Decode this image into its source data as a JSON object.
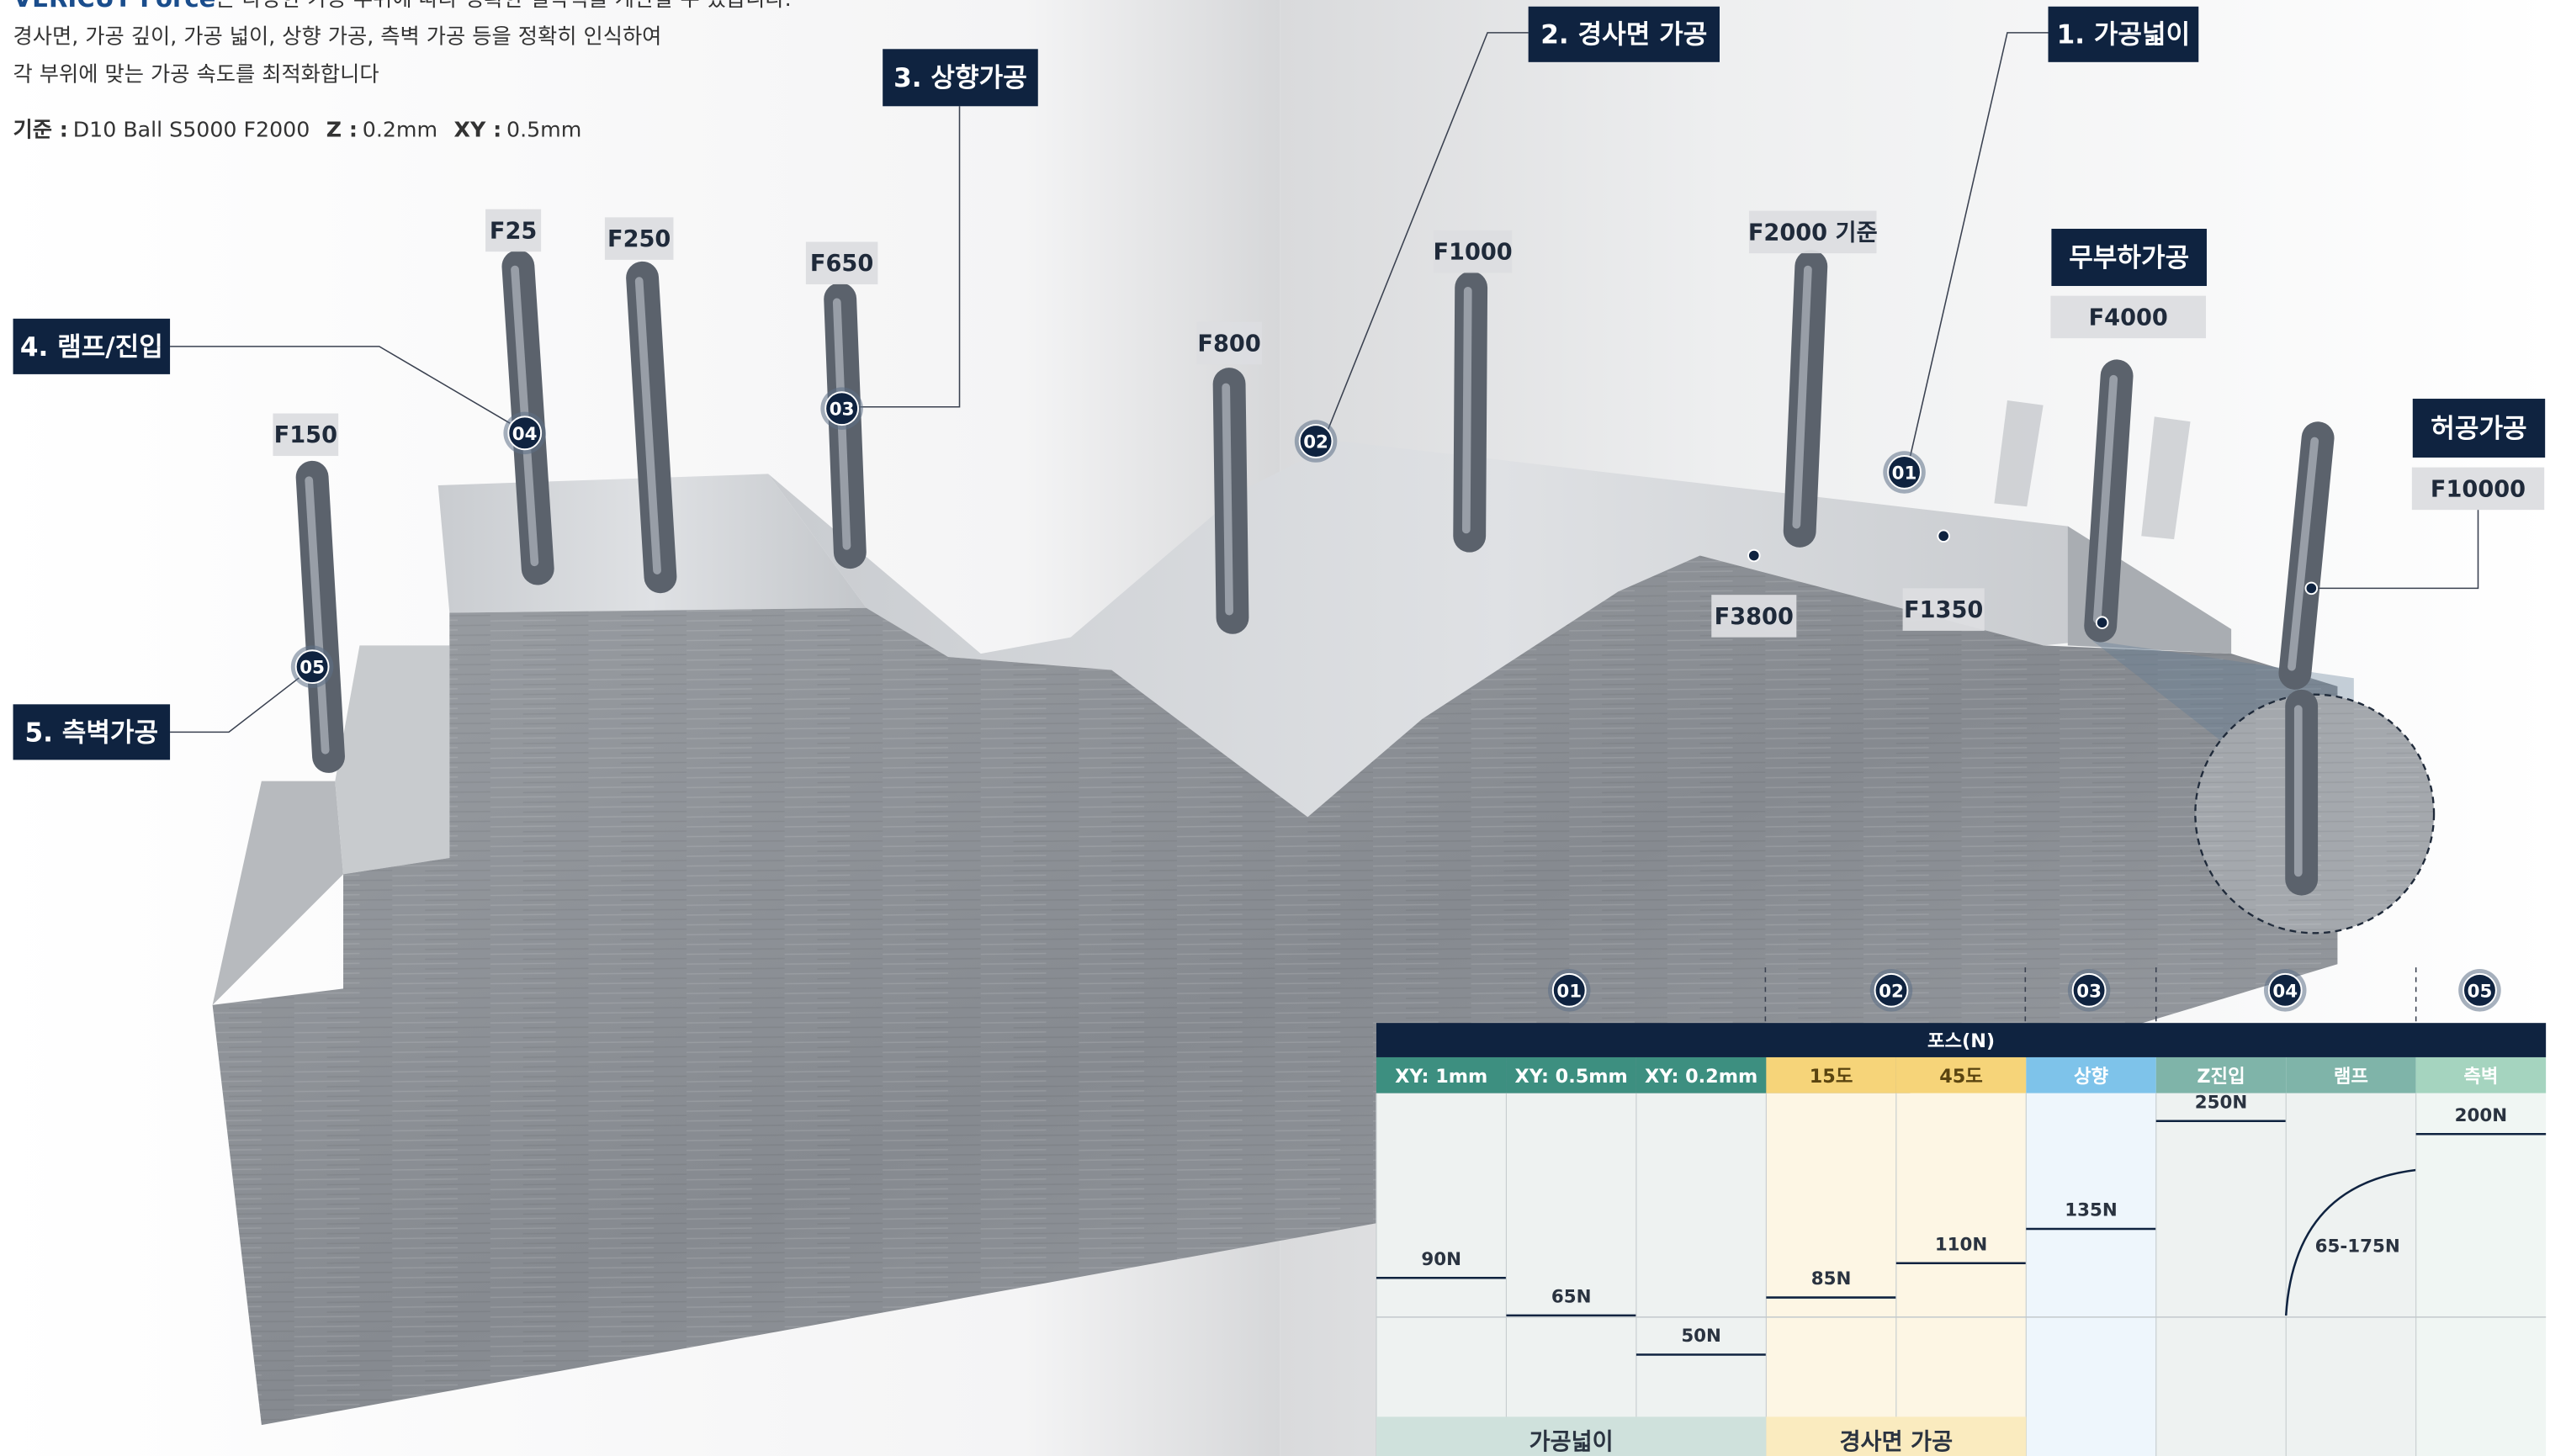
{
  "intro": {
    "lead_brand": "VERICUT Force",
    "lead_rest": "는 다양한 가공 부위에 따라 정확한 절삭력을 계산할 수 있습니다.",
    "lines": [
      "경사면, 가공 깊이, 가공 넓이, 상향 가공, 측벽 가공 등을 정확히 인식하여",
      "각 부위에 맞는 가공 속도를 최적화합니다"
    ],
    "basis_label": "기준 :",
    "basis_text": "D10 Ball S5000 F2000",
    "z_label": "Z :",
    "z_text": "0.2mm",
    "xy_label": "XY :",
    "xy_text": "0.5mm"
  },
  "callouts": [
    "1. 가공넓이",
    "2. 경사면 가공",
    "3. 상향가공",
    "4. 램프/진입",
    "5. 측벽가공",
    "무부하가공",
    "허공가공"
  ],
  "feed_labels": [
    "F25",
    "F250",
    "F650",
    "F150",
    "F800",
    "F1000",
    "F2000 기준",
    "F4000",
    "F10000",
    "F3800",
    "F1350"
  ],
  "markers": [
    "01",
    "02",
    "03",
    "04",
    "05"
  ],
  "table": {
    "title": "포스(N)",
    "columns": [
      {
        "header": "XY: 1mm",
        "value": "90N"
      },
      {
        "header": "XY: 0.5mm",
        "value": "65N"
      },
      {
        "header": "XY: 0.2mm",
        "value": "50N"
      },
      {
        "header": "15도",
        "value": "85N"
      },
      {
        "header": "45도",
        "value": "110N"
      },
      {
        "header": "상향",
        "value": "135N"
      },
      {
        "header": "Z진입",
        "value": "250N"
      },
      {
        "header": "램프",
        "value": "65-175N"
      },
      {
        "header": "측벽",
        "value": "200N"
      }
    ],
    "groups": [
      "가공넓이",
      "경사면 가공"
    ]
  }
}
